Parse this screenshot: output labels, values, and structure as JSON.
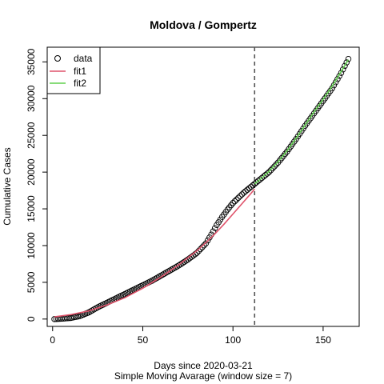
{
  "chart_data": {
    "type": "scatter",
    "title": "Moldova / Gompertz",
    "xlabel": "Days since 2020-03-21",
    "xlabel2": "Simple Moving Avarage (window size = 7)",
    "ylabel": "Cumulative Cases",
    "xlim": [
      -3,
      170
    ],
    "ylim": [
      -1000,
      37000
    ],
    "xticks": [
      0,
      50,
      100,
      150
    ],
    "yticks": [
      0,
      5000,
      10000,
      15000,
      20000,
      25000,
      30000,
      35000
    ],
    "vline_x": 112,
    "legend": {
      "position": "top-left",
      "entries": [
        {
          "label": "data",
          "kind": "point",
          "color": "#000000"
        },
        {
          "label": "fit1",
          "kind": "line",
          "color": "#DF536B"
        },
        {
          "label": "fit2",
          "kind": "line",
          "color": "#61D04F"
        }
      ]
    },
    "data_curve": {
      "x": [
        1,
        5,
        10,
        15,
        20,
        25,
        30,
        35,
        40,
        45,
        50,
        55,
        60,
        65,
        70,
        75,
        80,
        85,
        88,
        91,
        94,
        97,
        100,
        103,
        106,
        109,
        112,
        115,
        120,
        125,
        130,
        135,
        140,
        145,
        150,
        155,
        160,
        164
      ],
      "y": [
        0,
        50,
        150,
        400,
        900,
        1600,
        2200,
        2800,
        3400,
        4000,
        4600,
        5200,
        5900,
        6600,
        7300,
        8100,
        9000,
        10300,
        11500,
        12800,
        13900,
        14900,
        15800,
        16500,
        17200,
        17800,
        18400,
        19000,
        20000,
        21300,
        22800,
        24500,
        26300,
        28000,
        29700,
        31400,
        33500,
        35400
      ]
    },
    "series": [
      {
        "name": "fit1",
        "color": "#DF536B",
        "x": [
          1,
          10,
          20,
          30,
          40,
          50,
          60,
          70,
          80,
          85,
          90,
          95,
          100,
          105,
          110,
          112
        ],
        "y": [
          300,
          600,
          1100,
          1900,
          2900,
          4200,
          5700,
          7400,
          9300,
          10400,
          11600,
          12900,
          14300,
          15700,
          17100,
          17700
        ]
      },
      {
        "name": "fit2",
        "color": "#61D04F",
        "x": [
          112,
          115,
          120,
          125,
          130,
          135,
          140,
          145,
          150,
          155,
          160,
          164
        ],
        "y": [
          18400,
          19000,
          20100,
          21400,
          22900,
          24600,
          26400,
          28200,
          29900,
          31700,
          33700,
          35300
        ]
      }
    ]
  }
}
